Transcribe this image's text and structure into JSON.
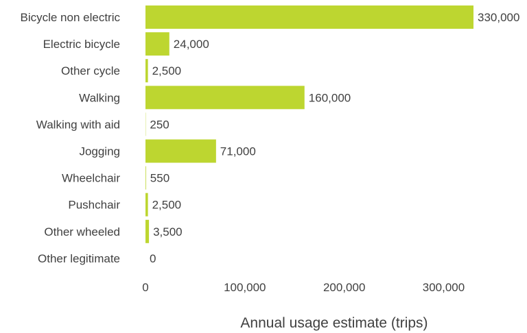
{
  "chart_data": {
    "type": "bar",
    "orientation": "horizontal",
    "categories": [
      "Bicycle non electric",
      "Electric bicycle",
      "Other cycle",
      "Walking",
      "Walking with aid",
      "Jogging",
      "Wheelchair",
      "Pushchair",
      "Other wheeled",
      "Other legitimate"
    ],
    "values": [
      330000,
      24000,
      2500,
      160000,
      250,
      71000,
      550,
      2500,
      3500,
      0
    ],
    "value_labels": [
      "330,000",
      "24,000",
      "2,500",
      "160,000",
      "250",
      "71,000",
      "550",
      "2,500",
      "3,500",
      "0"
    ],
    "xticks": [
      0,
      100000,
      200000,
      300000
    ],
    "xtick_labels": [
      "0",
      "100,000",
      "200,000",
      "300,000"
    ],
    "xlim": [
      0,
      330000
    ],
    "xlabel": "Annual usage estimate (trips)",
    "ylabel": "",
    "title": "",
    "grid": false,
    "legend": "none",
    "bar_color": "#bdd630",
    "text_color": "#404040"
  }
}
